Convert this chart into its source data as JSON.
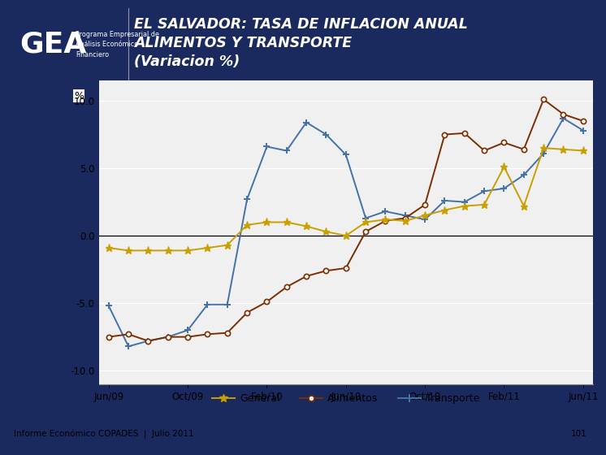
{
  "title_line1": "EL SALVADOR: TASA DE INFLACION ANUAL",
  "title_line2": "ALIMENTOS Y TRANSPORTE",
  "title_line3": "(Variacion %)",
  "header_bg": "#1b2a5e",
  "gea_text": "GEA",
  "subtitle_text": "Programa Empresarial de\nAnálisis Económico -\nFinanciero",
  "footer_text": "Informe Económico COPADES  |  Julio 2011",
  "footer_page": "101",
  "ylabel": "%",
  "ylim": [
    -11,
    11.5
  ],
  "yticks": [
    -10.0,
    -5.0,
    0.0,
    5.0,
    10.0
  ],
  "xtick_labels": [
    "Jun/09",
    "Oct/09",
    "Feb/10",
    "Jun/10",
    "Oct/10",
    "Feb/11",
    "Jun/11"
  ],
  "x_indices": [
    0,
    1,
    2,
    3,
    4,
    5,
    6,
    7,
    8,
    9,
    10,
    11,
    12,
    13,
    14,
    15,
    16,
    17,
    18,
    19,
    20,
    21,
    22,
    23,
    24
  ],
  "general_color": "#c8a000",
  "alimentos_color": "#7b2e00",
  "transporte_color": "#4472a8",
  "general_data": [
    -0.9,
    -1.1,
    -1.1,
    -1.1,
    -1.1,
    -0.9,
    -0.7,
    0.8,
    1.0,
    1.0,
    0.7,
    0.3,
    0.0,
    1.0,
    1.2,
    1.1,
    1.5,
    1.9,
    2.2,
    2.3,
    5.1,
    2.2,
    6.5,
    6.4,
    6.3
  ],
  "alimentos_data": [
    -7.5,
    -7.3,
    -7.8,
    -7.5,
    -7.5,
    -7.3,
    -7.2,
    -5.7,
    -4.9,
    -3.8,
    -3.0,
    -2.6,
    -2.4,
    0.3,
    1.1,
    1.3,
    2.3,
    7.5,
    7.6,
    6.3,
    6.9,
    6.4,
    10.1,
    9.0,
    8.5
  ],
  "transporte_data": [
    -5.2,
    -8.2,
    -7.8,
    -7.5,
    -7.0,
    -5.1,
    -5.1,
    2.7,
    6.6,
    6.3,
    8.4,
    7.5,
    6.0,
    1.3,
    1.8,
    1.5,
    1.2,
    2.6,
    2.5,
    3.3,
    3.5,
    4.5,
    6.1,
    8.7,
    7.8
  ],
  "x_tick_positions": [
    0,
    4,
    8,
    12,
    16,
    20,
    24
  ],
  "plot_bg": "#f0f0f0",
  "grid_color": "#ffffff",
  "footer_bg": "#999999"
}
